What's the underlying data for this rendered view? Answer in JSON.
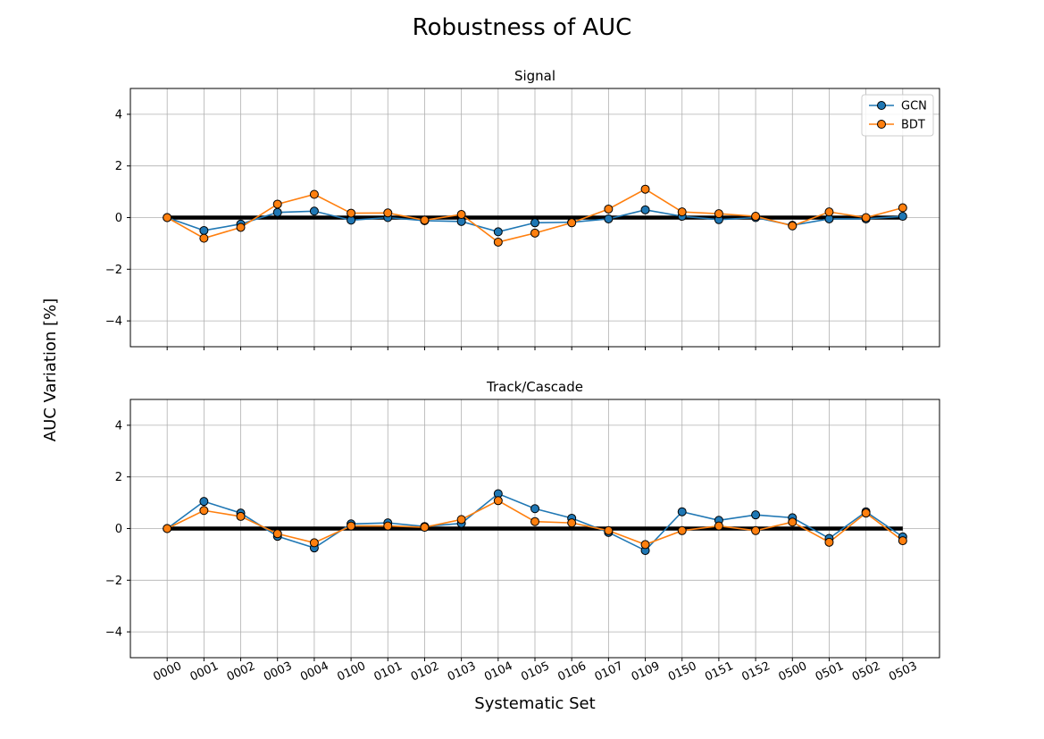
{
  "figure": {
    "title": "Robustness of AUC",
    "ylabel": "AUC Variation [%]",
    "xlabel": "Systematic Set"
  },
  "colors": {
    "GCN": "#1f77b4",
    "BDT": "#ff7f0e",
    "reference": "#000000",
    "grid": "#b0b0b0"
  },
  "legend": {
    "placement": "top-right",
    "entries": [
      "GCN",
      "BDT"
    ]
  },
  "chart_data": [
    {
      "type": "line",
      "title": "Signal",
      "categories": [
        "0000",
        "0001",
        "0002",
        "0003",
        "0004",
        "0100",
        "0101",
        "0102",
        "0103",
        "0104",
        "0105",
        "0106",
        "0107",
        "0109",
        "0150",
        "0151",
        "0152",
        "0500",
        "0501",
        "0502",
        "0503"
      ],
      "ylim": [
        -5,
        5
      ],
      "yticks": [
        -4,
        -2,
        0,
        2,
        4
      ],
      "grid": true,
      "series": [
        {
          "name": "GCN",
          "values": [
            0.0,
            -0.5,
            -0.25,
            0.2,
            0.25,
            -0.1,
            0.0,
            -0.12,
            -0.15,
            -0.55,
            -0.2,
            -0.18,
            -0.05,
            0.3,
            0.05,
            -0.08,
            0.0,
            -0.3,
            -0.05,
            -0.05,
            0.05
          ]
        },
        {
          "name": "BDT",
          "values": [
            0.0,
            -0.8,
            -0.38,
            0.52,
            0.9,
            0.17,
            0.18,
            -0.1,
            0.12,
            -0.95,
            -0.6,
            -0.2,
            0.33,
            1.1,
            0.22,
            0.15,
            0.05,
            -0.32,
            0.22,
            0.0,
            0.38
          ]
        }
      ],
      "reference_line": 0
    },
    {
      "type": "line",
      "title": "Track/Cascade",
      "categories": [
        "0000",
        "0001",
        "0002",
        "0003",
        "0004",
        "0100",
        "0101",
        "0102",
        "0103",
        "0104",
        "0105",
        "0106",
        "0107",
        "0109",
        "0150",
        "0151",
        "0152",
        "0500",
        "0501",
        "0502",
        "0503"
      ],
      "ylim": [
        -5,
        5
      ],
      "yticks": [
        -4,
        -2,
        0,
        2,
        4
      ],
      "grid": true,
      "series": [
        {
          "name": "GCN",
          "values": [
            0.0,
            1.05,
            0.6,
            -0.3,
            -0.75,
            0.18,
            0.22,
            0.08,
            0.2,
            1.35,
            0.77,
            0.4,
            -0.15,
            -0.85,
            0.65,
            0.32,
            0.53,
            0.42,
            -0.38,
            0.65,
            -0.32
          ]
        },
        {
          "name": "BDT",
          "values": [
            0.0,
            0.7,
            0.47,
            -0.2,
            -0.55,
            0.1,
            0.1,
            0.05,
            0.35,
            1.08,
            0.27,
            0.22,
            -0.08,
            -0.62,
            -0.08,
            0.1,
            -0.08,
            0.25,
            -0.53,
            0.6,
            -0.47
          ]
        }
      ],
      "reference_line": 0
    }
  ]
}
